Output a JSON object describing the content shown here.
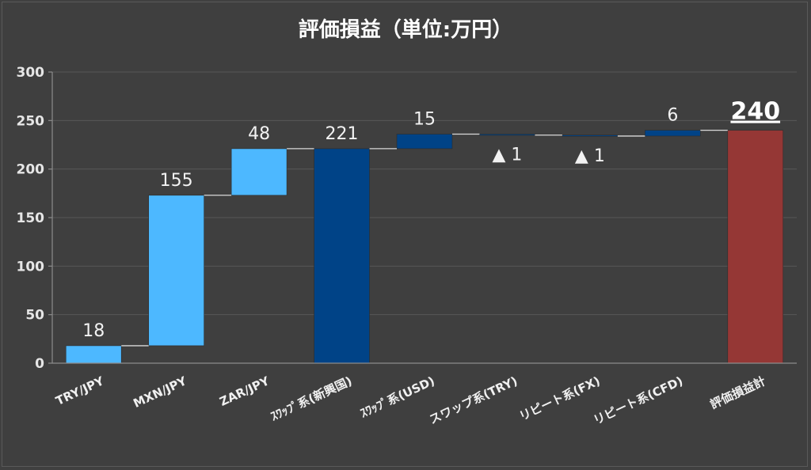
{
  "chart_data": {
    "type": "bar",
    "subtype": "waterfall",
    "title": "評価損益（単位:万円）",
    "xlabel": "",
    "ylabel": "",
    "ylim": [
      0,
      300
    ],
    "yticks": [
      0,
      50,
      100,
      150,
      200,
      250,
      300
    ],
    "grid": true,
    "legend": "none",
    "categories": [
      "TRY/JPY",
      "MXN/JPY",
      "ZAR/JPY",
      "ｽﾜｯﾌﾟ系(新興国)",
      "ｽﾜｯﾌﾟ系(USD)",
      "スワップ系(TRY)",
      "リピート系(FX)",
      "リピート系(CFD)",
      "評価損益計"
    ],
    "values": [
      18,
      155,
      48,
      221,
      15,
      -1,
      -1,
      6,
      240
    ],
    "kinds": [
      "delta",
      "delta",
      "delta",
      "subtotal",
      "delta",
      "delta",
      "delta",
      "delta",
      "total"
    ],
    "data_labels": [
      "18",
      "155",
      "48",
      "221",
      "15",
      "▲ 1",
      "▲ 1",
      "6",
      "240"
    ],
    "colors": {
      "currency_delta": "#4db8ff",
      "subtotal": "#004387",
      "delta_dark": "#004387",
      "total": "#953735"
    },
    "bar_color_keys": [
      "currency_delta",
      "currency_delta",
      "currency_delta",
      "subtotal",
      "delta_dark",
      "delta_dark",
      "delta_dark",
      "delta_dark",
      "total"
    ]
  }
}
